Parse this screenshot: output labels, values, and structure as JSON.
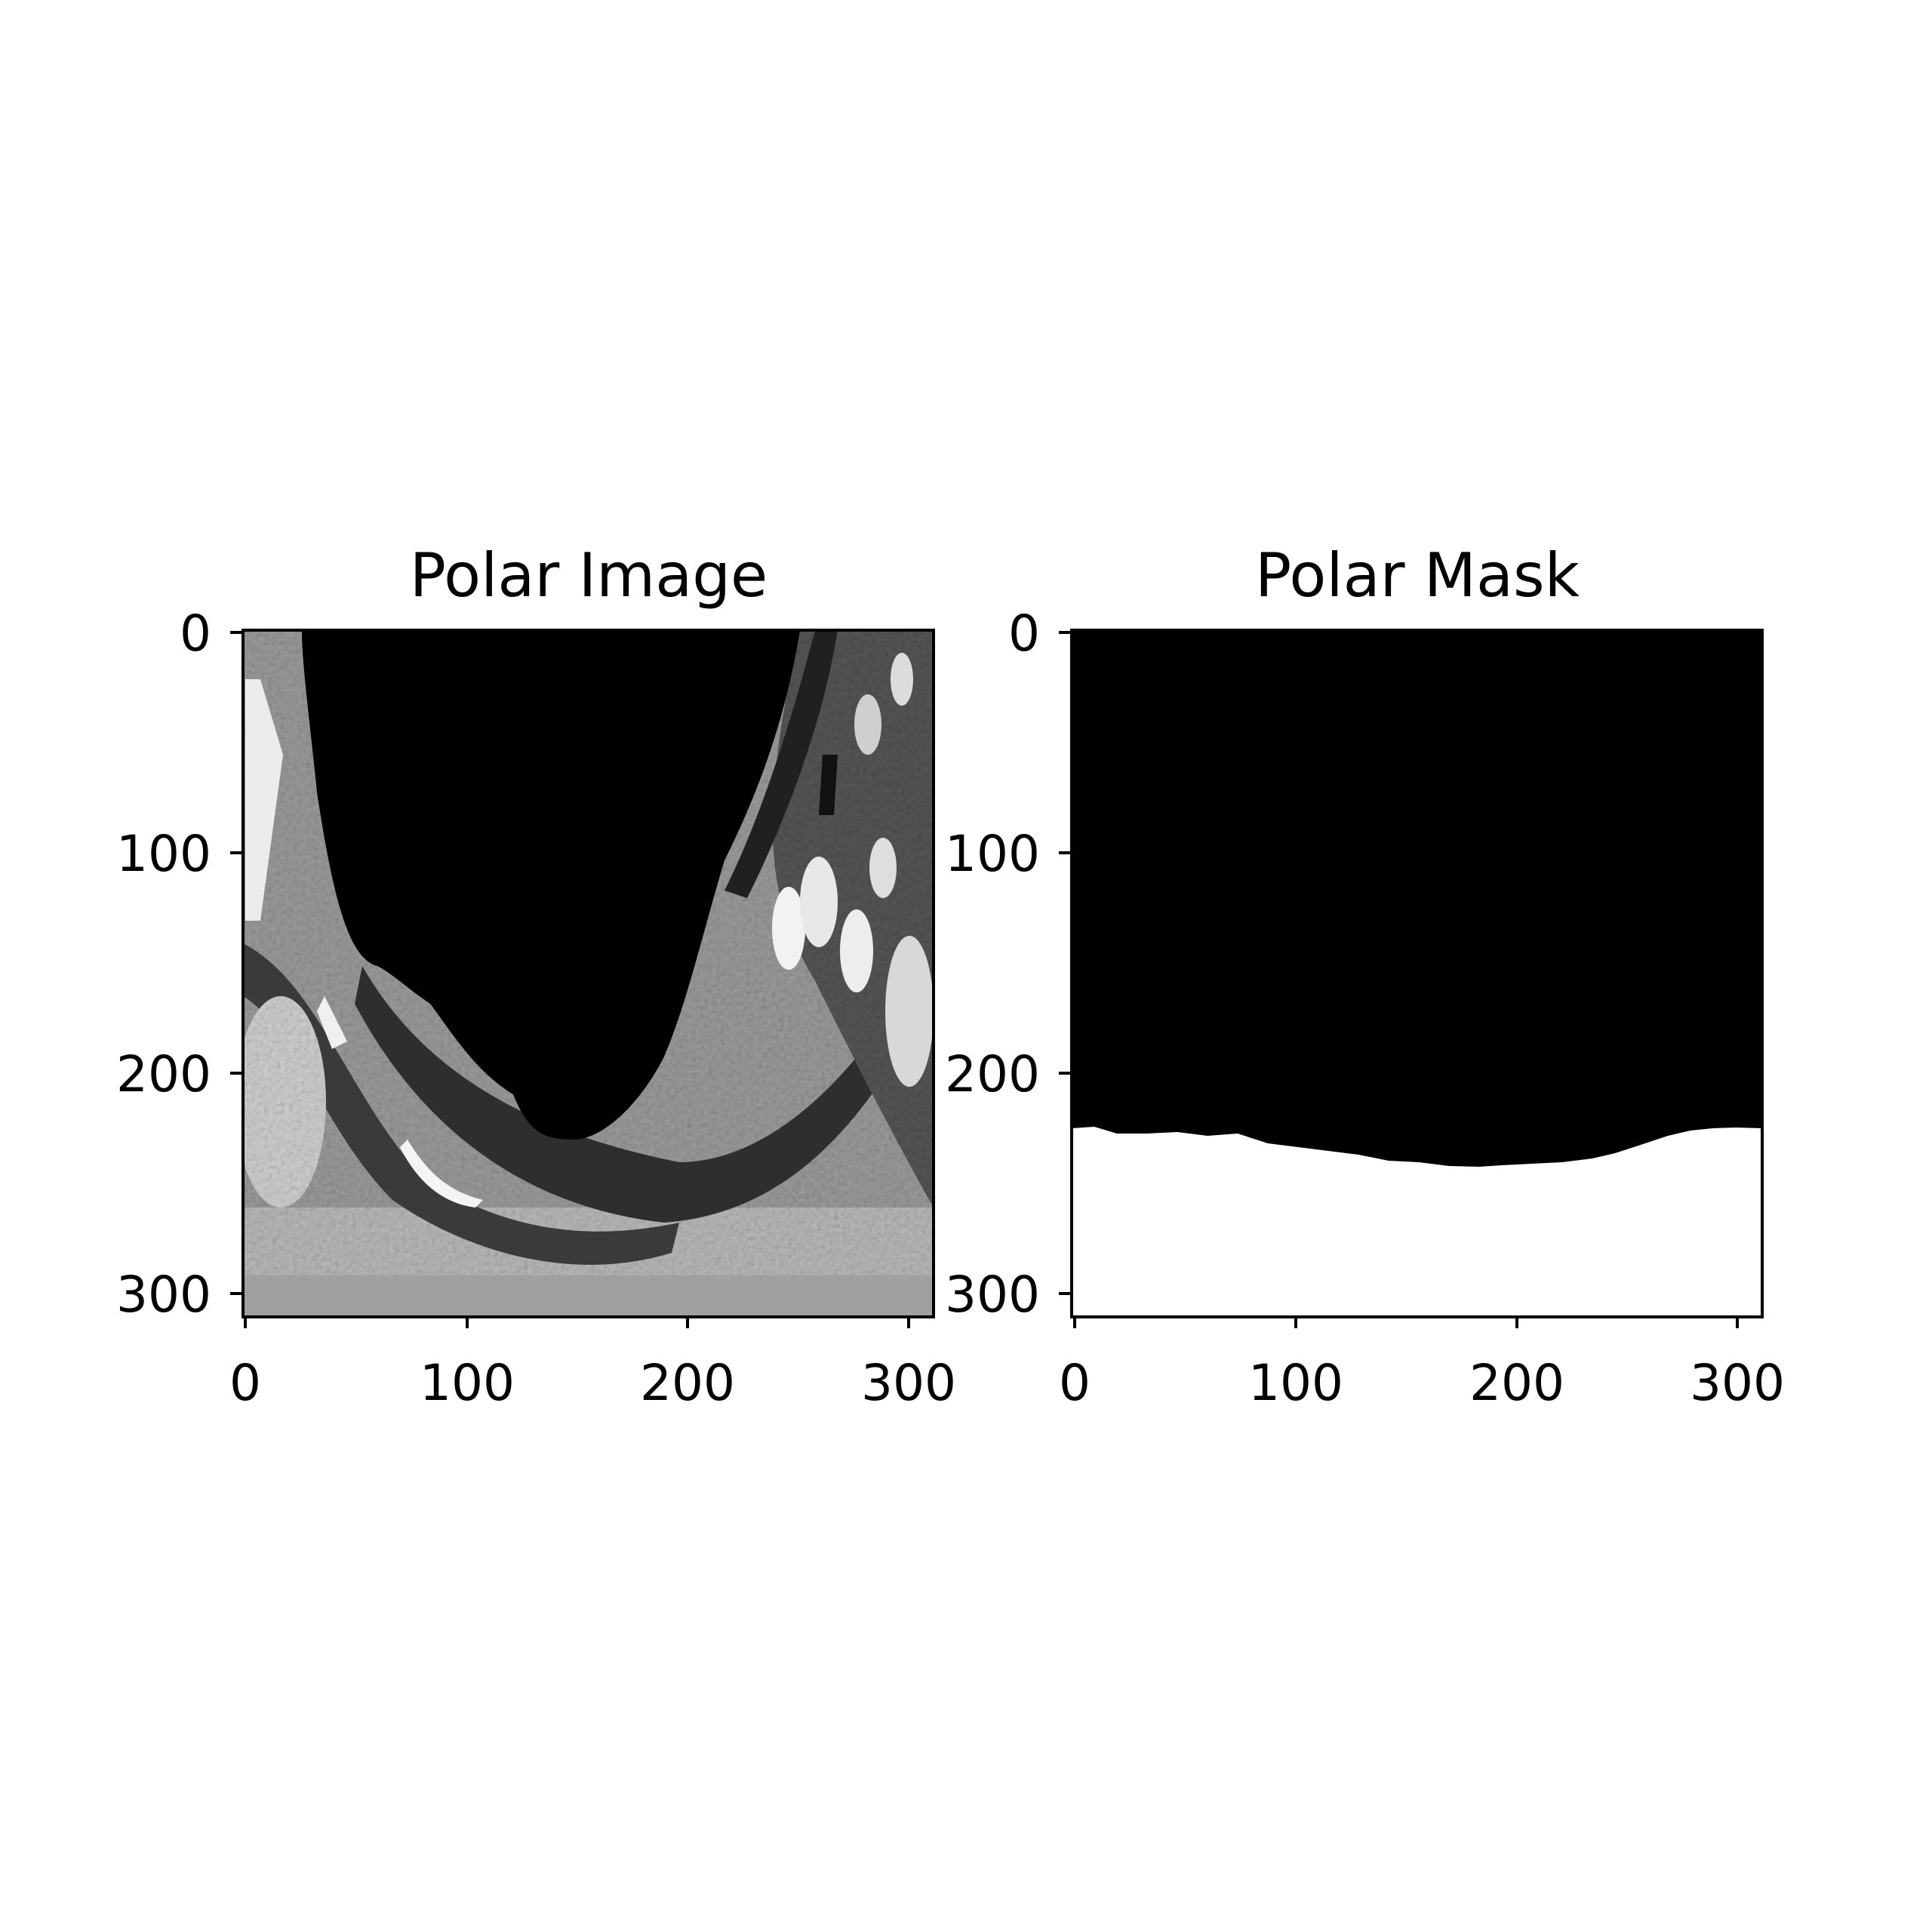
{
  "panels": [
    {
      "title": "Polar Image",
      "x_ticks": [
        "0",
        "100",
        "200",
        "300"
      ],
      "y_ticks": [
        "0",
        "100",
        "200",
        "300"
      ],
      "x_range": [
        0,
        313
      ],
      "y_range": [
        0,
        313
      ]
    },
    {
      "title": "Polar Mask",
      "x_ticks": [
        "0",
        "100",
        "200",
        "300"
      ],
      "y_ticks": [
        "0",
        "100",
        "200",
        "300"
      ],
      "x_range": [
        0,
        313
      ],
      "y_range": [
        0,
        313
      ]
    }
  ]
}
